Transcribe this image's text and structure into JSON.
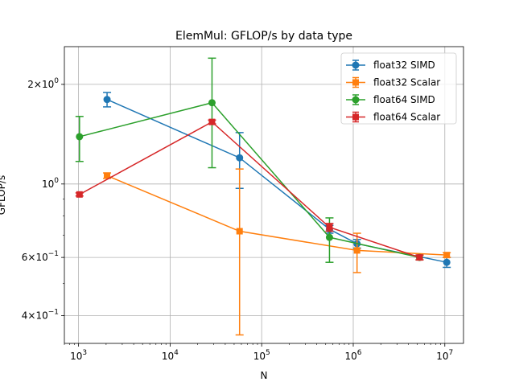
{
  "chart_data": {
    "type": "line",
    "title": "ElemMul: GFLOP/s by data type",
    "xlabel": "N",
    "ylabel": "GFLOP/s",
    "xscale": "log",
    "yscale": "log",
    "xlim": [
      700,
      16000000
    ],
    "ylim": [
      0.33,
      2.6
    ],
    "grid": true,
    "legend_position": "upper right",
    "x_ticks": [
      {
        "value": 1000,
        "base": "10",
        "exp": "3"
      },
      {
        "value": 10000,
        "base": "10",
        "exp": "4"
      },
      {
        "value": 100000,
        "base": "10",
        "exp": "5"
      },
      {
        "value": 1000000,
        "base": "10",
        "exp": "6"
      },
      {
        "value": 10000000,
        "base": "10",
        "exp": "7"
      }
    ],
    "y_ticks": [
      {
        "value": 2.0,
        "mant": "2",
        "times": "×",
        "base": "10",
        "exp": "0"
      },
      {
        "value": 1.0,
        "plain": "10",
        "exp": "0"
      },
      {
        "value": 0.6,
        "mant": "6",
        "times": "×",
        "base": "10",
        "exp": "−1"
      },
      {
        "value": 0.4,
        "mant": "4",
        "times": "×",
        "base": "10",
        "exp": "−1"
      }
    ],
    "series": [
      {
        "name": "float32 SIMD",
        "color": "#1f77b4",
        "marker": "circle",
        "x": [
          2048,
          57344,
          550000,
          1100000,
          10500000
        ],
        "y": [
          1.8,
          1.2,
          0.73,
          0.66,
          0.58
        ],
        "err_low": [
          1.71,
          0.97,
          0.71,
          0.64,
          0.56
        ],
        "err_high": [
          1.89,
          1.43,
          0.75,
          0.68,
          0.6
        ]
      },
      {
        "name": "float32 Scalar",
        "color": "#ff7f0e",
        "marker": "square",
        "x": [
          2048,
          57344,
          1100000,
          10500000
        ],
        "y": [
          1.06,
          0.72,
          0.63,
          0.61
        ],
        "err_low": [
          1.04,
          0.35,
          0.54,
          0.6
        ],
        "err_high": [
          1.08,
          1.11,
          0.71,
          0.62
        ]
      },
      {
        "name": "float64 SIMD",
        "color": "#2ca02c",
        "marker": "circle",
        "x": [
          1024,
          28672,
          550000,
          5300000
        ],
        "y": [
          1.39,
          1.76,
          0.69,
          0.6
        ],
        "err_low": [
          1.17,
          1.12,
          0.58,
          0.59
        ],
        "err_high": [
          1.6,
          2.4,
          0.79,
          0.61
        ]
      },
      {
        "name": "float64 Scalar",
        "color": "#d62728",
        "marker": "square",
        "x": [
          1024,
          28672,
          550000,
          5300000
        ],
        "y": [
          0.93,
          1.54,
          0.74,
          0.6
        ],
        "err_low": [
          0.92,
          1.52,
          0.72,
          0.59
        ],
        "err_high": [
          0.94,
          1.56,
          0.76,
          0.61
        ]
      }
    ]
  }
}
